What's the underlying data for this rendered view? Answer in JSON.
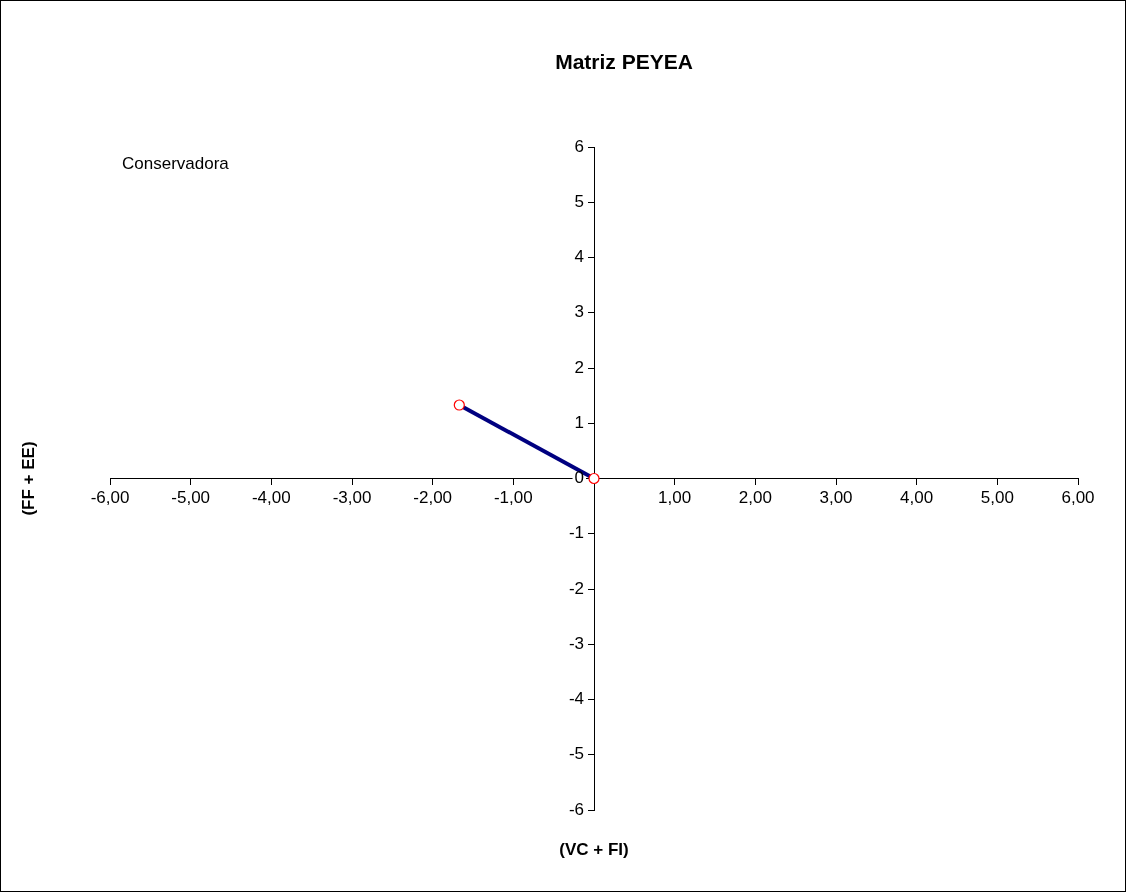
{
  "chart_data": {
    "type": "line",
    "title": "Matriz PEYEA",
    "xlabel": "(VC + FI)",
    "ylabel": "(FF + EE)",
    "annotations": [
      "Conservadora"
    ],
    "x": [
      -1.67,
      0
    ],
    "series": [
      {
        "color": "#000080",
        "values": [
          1.33,
          0
        ]
      }
    ],
    "marker": "circle",
    "line_style": "solid",
    "grid": false,
    "legend": false,
    "xlim": [
      -6,
      6
    ],
    "xticks": [
      {
        "value": -6,
        "label": "-6,00"
      },
      {
        "value": -5,
        "label": "-5,00"
      },
      {
        "value": -4,
        "label": "-4,00"
      },
      {
        "value": -3,
        "label": "-3,00"
      },
      {
        "value": -2,
        "label": "-2,00"
      },
      {
        "value": -1,
        "label": "-1,00"
      },
      {
        "value": 0,
        "label": null
      },
      {
        "value": 1,
        "label": "1,00"
      },
      {
        "value": 2,
        "label": "2,00"
      },
      {
        "value": 3,
        "label": "3,00"
      },
      {
        "value": 4,
        "label": "4,00"
      },
      {
        "value": 5,
        "label": "5,00"
      },
      {
        "value": 6,
        "label": "6,00"
      }
    ],
    "ylim": [
      -6,
      6
    ],
    "yticks": [
      -6,
      -5,
      -4,
      -3,
      -2,
      -1,
      0,
      1,
      2,
      3,
      4,
      5,
      6
    ]
  }
}
